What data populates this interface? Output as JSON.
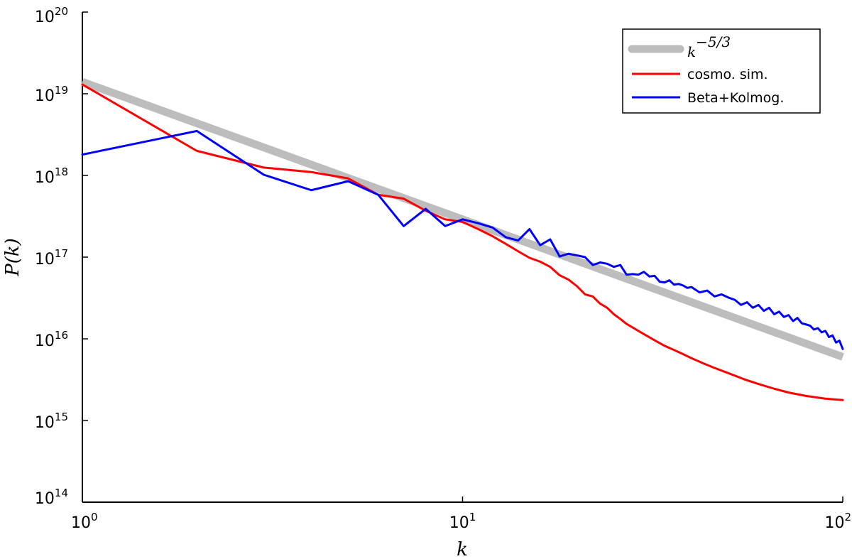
{
  "chart_data": {
    "type": "line",
    "title": "",
    "xlabel": "k",
    "ylabel": "P(k)",
    "xscale": "log",
    "yscale": "log",
    "xlim": [
      1,
      100
    ],
    "ylim": [
      100000000000000.0,
      1e+20
    ],
    "grid": false,
    "legend_position": "top-right",
    "x_ticks": [
      {
        "base": "10",
        "exp": "0",
        "value": 1
      },
      {
        "base": "10",
        "exp": "1",
        "value": 10
      },
      {
        "base": "10",
        "exp": "2",
        "value": 100
      }
    ],
    "y_ticks": [
      {
        "base": "10",
        "exp": "14",
        "value": 100000000000000.0
      },
      {
        "base": "10",
        "exp": "15",
        "value": 1000000000000000.0
      },
      {
        "base": "10",
        "exp": "16",
        "value": 1e+16
      },
      {
        "base": "10",
        "exp": "17",
        "value": 1e+17
      },
      {
        "base": "10",
        "exp": "18",
        "value": 1e+18
      },
      {
        "base": "10",
        "exp": "19",
        "value": 1e+19
      },
      {
        "base": "10",
        "exp": "20",
        "value": 1e+20
      }
    ],
    "series": [
      {
        "name": "k^{-5/3}",
        "legend_base": "k",
        "legend_exp": "−5/3",
        "color": "#bdbdbd",
        "style": "thick",
        "x": [
          1,
          100
        ],
        "y": [
          1.4e+19,
          6000000000000000.0
        ]
      },
      {
        "name": "cosmo. sim.",
        "color": "#ff0000",
        "style": "normal",
        "x": [
          1,
          2,
          3,
          4,
          5,
          6,
          7,
          8,
          9,
          10,
          11,
          12,
          13,
          14,
          15,
          16,
          17,
          18,
          19,
          20,
          21,
          22,
          23,
          24,
          25,
          26,
          27,
          28,
          29,
          30,
          32,
          34,
          36,
          38,
          40,
          43,
          46,
          50,
          55,
          60,
          66,
          72,
          80,
          90,
          100
        ],
        "y": [
          1.3e+19,
          2e+18,
          1.25e+18,
          1.1e+18,
          9.2e+17,
          5.8e+17,
          5.2e+17,
          3.7e+17,
          2.9e+17,
          2.7e+17,
          2.2e+17,
          1.8e+17,
          1.45e+17,
          1.18e+17,
          9.8e+16,
          8.8e+16,
          7.6e+16,
          6e+16,
          5.3e+16,
          4.4e+16,
          3.5e+16,
          3.3e+16,
          2.7e+16,
          2.4e+16,
          2e+16,
          1.75e+16,
          1.52e+16,
          1.38e+16,
          1.25e+16,
          1.14e+16,
          9600000000000000.0,
          8200000000000000.0,
          7300000000000000.0,
          6500000000000000.0,
          5800000000000000.0,
          5000000000000000.0,
          4400000000000000.0,
          3800000000000000.0,
          3200000000000000.0,
          2800000000000000.0,
          2450000000000000.0,
          2200000000000000.0,
          2000000000000000.0,
          1850000000000000.0,
          1780000000000000.0
        ]
      },
      {
        "name": "Beta+Kolmog.",
        "color": "#0000ff",
        "style": "normal",
        "x": [
          1,
          2,
          3,
          4,
          5,
          6,
          7,
          8,
          9,
          10,
          11,
          12,
          13,
          14,
          15,
          16,
          17,
          18,
          19,
          20,
          21,
          22,
          23,
          24,
          25,
          26,
          27,
          28,
          29,
          30,
          31,
          32,
          33,
          34,
          35,
          36,
          37,
          38,
          39,
          40,
          42,
          44,
          46,
          48,
          50,
          52,
          54,
          56,
          58,
          60,
          62,
          64,
          66,
          68,
          70,
          72,
          74,
          76,
          78,
          80,
          82,
          84,
          86,
          88,
          90,
          92,
          94,
          96,
          98,
          100
        ],
        "y": [
          1.8e+18,
          3.5e+18,
          1.02e+18,
          6.6e+17,
          8.5e+17,
          5.8e+17,
          2.4e+17,
          3.9e+17,
          2.4e+17,
          2.9e+17,
          2.6e+17,
          2.3e+17,
          1.75e+17,
          1.6e+17,
          2.2e+17,
          1.4e+17,
          1.65e+17,
          1.02e+17,
          1.1e+17,
          1.05e+17,
          1e+17,
          8e+16,
          8.6e+16,
          8.3e+16,
          7.6e+16,
          8e+16,
          6.1e+16,
          6.2e+16,
          6.1e+16,
          6.6e+16,
          5.8e+16,
          5.9e+16,
          5e+16,
          4.9e+16,
          5.2e+16,
          4.6e+16,
          4.7e+16,
          4.5e+16,
          4.2e+16,
          4.3e+16,
          3.7e+16,
          3.9e+16,
          3.3e+16,
          3.5e+16,
          3.2e+16,
          3e+16,
          2.6e+16,
          2.8e+16,
          2.4e+16,
          2.6e+16,
          2.2e+16,
          2.4e+16,
          2e+16,
          2.15e+16,
          1.85e+16,
          1.95e+16,
          1.65e+16,
          1.8e+16,
          1.55e+16,
          1.5e+16,
          1.45e+16,
          1.3e+16,
          1.35e+16,
          1.2e+16,
          1.25e+16,
          1.05e+16,
          1.1e+16,
          9000000000000000.0,
          9500000000000000.0,
          7500000000000000.0
        ]
      }
    ]
  }
}
